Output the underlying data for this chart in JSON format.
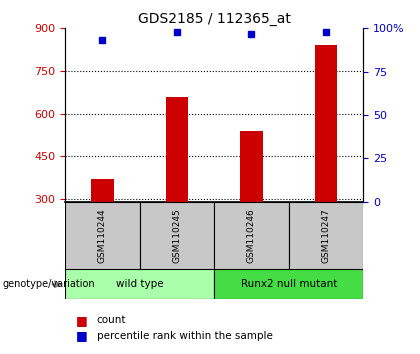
{
  "title": "GDS2185 / 112365_at",
  "samples": [
    "GSM110244",
    "GSM110245",
    "GSM110246",
    "GSM110247"
  ],
  "counts": [
    370,
    660,
    540,
    840
  ],
  "percentile_ranks": [
    93,
    98,
    97,
    98
  ],
  "ylim_left": [
    290,
    900
  ],
  "yticks_left": [
    300,
    450,
    600,
    750,
    900
  ],
  "yticks_right": [
    0,
    25,
    50,
    75,
    100
  ],
  "ylim_right": [
    0,
    100
  ],
  "groups": [
    {
      "label": "wild type",
      "samples": [
        0,
        1
      ],
      "color": "#aaffaa"
    },
    {
      "label": "Runx2 null mutant",
      "samples": [
        2,
        3
      ],
      "color": "#44dd44"
    }
  ],
  "bar_color": "#CC0000",
  "dot_color": "#0000CC",
  "left_tick_color": "#CC0000",
  "right_tick_color": "#0000CC",
  "sample_box_color": "#C8C8C8",
  "genotype_label": "genotype/variation",
  "arrow_color": "#888888"
}
